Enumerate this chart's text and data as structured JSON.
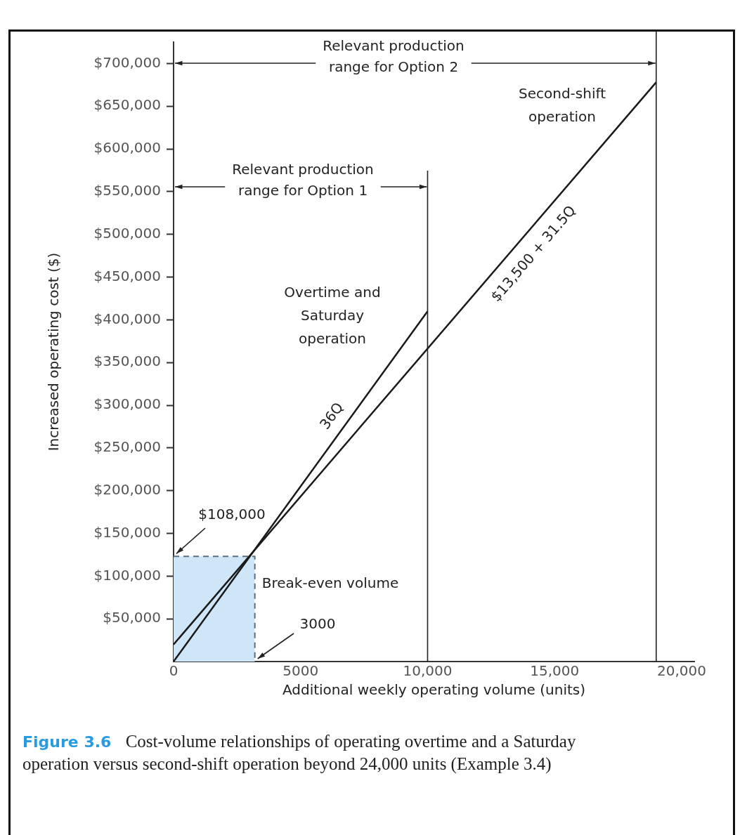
{
  "chart_data": {
    "type": "line",
    "xlabel": "Additional weekly operating volume (units)",
    "ylabel": "Increased operating cost ($)",
    "xlim": [
      0,
      20500
    ],
    "ylim": [
      0,
      725000
    ],
    "xticks": [
      0,
      5000,
      {
        "value": 10000,
        "label": "10,000"
      },
      {
        "value": 15000,
        "label": "15,000"
      },
      {
        "value": 20000,
        "label": "20,000"
      }
    ],
    "yticks": [
      {
        "value": 50000,
        "label": "$50,000"
      },
      {
        "value": 100000,
        "label": "$100,000"
      },
      {
        "value": 150000,
        "label": "$150,000"
      },
      {
        "value": 200000,
        "label": "$200,000"
      },
      {
        "value": 250000,
        "label": "$250,000"
      },
      {
        "value": 300000,
        "label": "$300,000"
      },
      {
        "value": 350000,
        "label": "$350,000"
      },
      {
        "value": 400000,
        "label": "$400,000"
      },
      {
        "value": 450000,
        "label": "$450,000"
      },
      {
        "value": 500000,
        "label": "$500,000"
      },
      {
        "value": 550000,
        "label": "$550,000"
      },
      {
        "value": 600000,
        "label": "$600,000"
      },
      {
        "value": 650000,
        "label": "$650,000"
      },
      {
        "value": 700000,
        "label": "$700,000"
      }
    ],
    "series": [
      {
        "type": "area",
        "color": "#cfe6f8",
        "line_style": "dashed",
        "x": [
          0,
          3200,
          3200
        ],
        "values": [
          123000,
          123000,
          0
        ]
      },
      {
        "name": "Overtime and Saturday operation",
        "color": "#1a1a1a",
        "x": [
          0,
          10000
        ],
        "values": [
          0,
          410000
        ]
      },
      {
        "name": "Second-shift operation",
        "color": "#1a1a1a",
        "x": [
          0,
          19000
        ],
        "values": [
          20000,
          678000
        ]
      }
    ],
    "ref_lines": [
      {
        "axis": "x",
        "value": 10000,
        "label": "Relevant production range for Option 1"
      },
      {
        "axis": "x",
        "value": 19000,
        "label": "Relevant production range for Option 2"
      }
    ],
    "annotations": [
      "36Q",
      "$13,500 + 31.5Q",
      "Break-even volume",
      {
        "text": "$108,000",
        "x": 0,
        "y": 123000
      },
      {
        "text": "3000",
        "x": 3200,
        "y": 0
      },
      "Figure 3.6",
      "Cost-volume relationships of operating overtime and a Saturday operation versus second-shift operation beyond 24,000 units (Example 3.4)"
    ],
    "grid": false,
    "legend": false,
    "marker": "none",
    "line_style": "solid"
  }
}
